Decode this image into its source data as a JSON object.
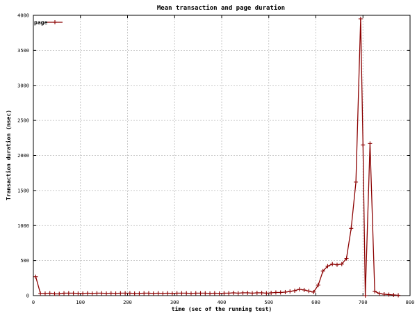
{
  "chart_data": {
    "type": "line",
    "title": "Mean transaction and page duration",
    "xlabel": "time (sec of the running test)",
    "ylabel": "Transaction duration (msec)",
    "xlim": [
      0,
      800
    ],
    "ylim": [
      0,
      4000
    ],
    "x_ticks": [
      0,
      100,
      200,
      300,
      400,
      500,
      600,
      700,
      800
    ],
    "y_ticks": [
      0,
      500,
      1000,
      1500,
      2000,
      2500,
      3000,
      3500,
      4000
    ],
    "grid": true,
    "legend": "top-left",
    "series": [
      {
        "name": "page",
        "color": "#8b0000",
        "marker": "cross",
        "x": [
          5,
          15,
          25,
          35,
          45,
          55,
          65,
          75,
          85,
          95,
          105,
          115,
          125,
          135,
          145,
          155,
          165,
          175,
          185,
          195,
          205,
          215,
          225,
          235,
          245,
          255,
          265,
          275,
          285,
          295,
          305,
          315,
          325,
          335,
          345,
          355,
          365,
          375,
          385,
          395,
          405,
          415,
          425,
          435,
          445,
          455,
          465,
          475,
          485,
          495,
          505,
          515,
          525,
          535,
          545,
          555,
          565,
          575,
          585,
          595,
          605,
          615,
          625,
          635,
          645,
          655,
          665,
          675,
          685,
          695,
          700,
          705,
          715,
          725,
          735,
          745,
          755,
          765,
          775
        ],
        "y": [
          270,
          30,
          30,
          35,
          25,
          25,
          35,
          35,
          35,
          30,
          30,
          35,
          30,
          35,
          35,
          30,
          35,
          30,
          35,
          35,
          35,
          30,
          30,
          35,
          35,
          30,
          35,
          30,
          35,
          30,
          35,
          35,
          35,
          30,
          35,
          35,
          35,
          30,
          35,
          30,
          35,
          35,
          40,
          35,
          40,
          40,
          35,
          40,
          40,
          35,
          40,
          45,
          45,
          50,
          60,
          70,
          90,
          80,
          65,
          50,
          150,
          350,
          420,
          450,
          440,
          450,
          530,
          960,
          1620,
          3950,
          2150,
          0,
          2170,
          60,
          30,
          20,
          15,
          10,
          5
        ]
      }
    ]
  }
}
